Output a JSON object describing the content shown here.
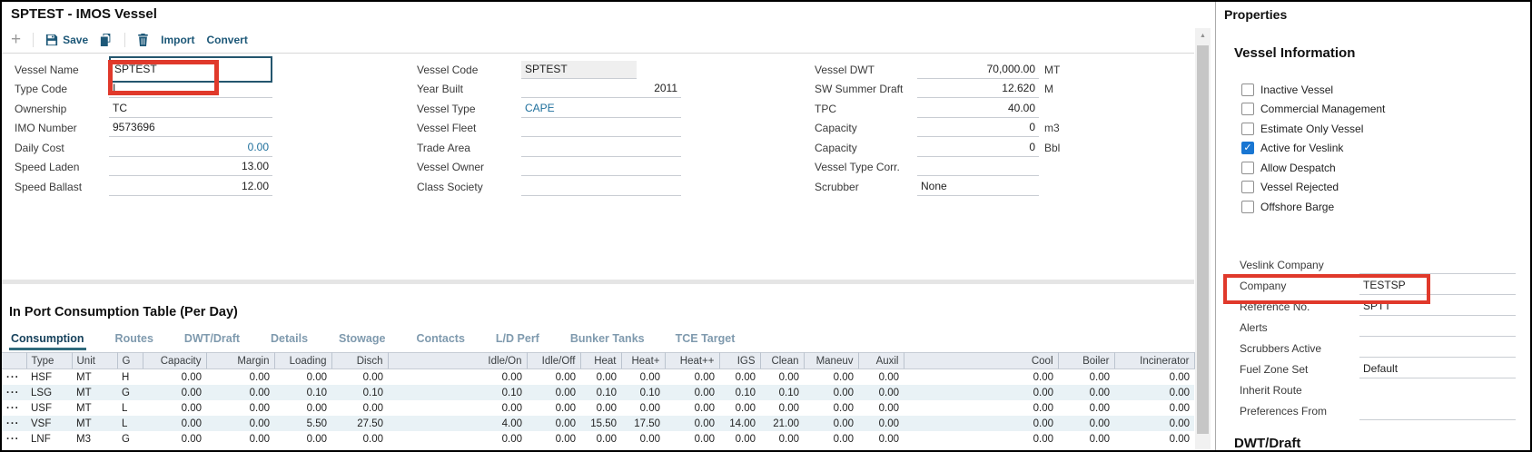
{
  "title": "SPTEST - IMOS Vessel",
  "toolbar": {
    "add": "+",
    "save": "Save",
    "import": "Import",
    "convert": "Convert",
    "icons": [
      "plus-icon",
      "floppy-disk-icon",
      "copy-icon",
      "trash-icon"
    ]
  },
  "form": {
    "columns": [
      {
        "name": "left",
        "fields": [
          {
            "label": "Vessel Name",
            "value": "SPTEST",
            "style": "boxed",
            "annotated": true
          },
          {
            "label": "Type Code",
            "value": "I"
          },
          {
            "label": "Ownership",
            "value": "TC"
          },
          {
            "label": "IMO Number",
            "value": "9573696"
          },
          {
            "label": "Daily Cost",
            "value": "0.00",
            "align": "right",
            "style": "link"
          },
          {
            "label": "Speed Laden",
            "value": "13.00",
            "align": "right"
          },
          {
            "label": "Speed Ballast",
            "value": "12.00",
            "align": "right"
          }
        ]
      },
      {
        "name": "middle",
        "fields": [
          {
            "label": "Vessel Code",
            "value": "SPTEST",
            "style": "readonly"
          },
          {
            "label": "Year Built",
            "value": "2011",
            "align": "right"
          },
          {
            "label": "Vessel Type",
            "value": "CAPE",
            "style": "link"
          },
          {
            "label": "Vessel Fleet",
            "value": ""
          },
          {
            "label": "Trade Area",
            "value": ""
          },
          {
            "label": "Vessel Owner",
            "value": ""
          },
          {
            "label": "Class Society",
            "value": ""
          }
        ]
      },
      {
        "name": "right",
        "fields": [
          {
            "label": "Vessel DWT",
            "value": "70,000.00",
            "align": "right",
            "unit": "MT"
          },
          {
            "label": "SW Summer Draft",
            "value": "12.620",
            "align": "right",
            "unit": "M"
          },
          {
            "label": "TPC",
            "value": "40.00",
            "align": "right",
            "unit": ""
          },
          {
            "label": "Capacity",
            "value": "0",
            "align": "right",
            "unit": "m3"
          },
          {
            "label": "Capacity",
            "value": "0",
            "align": "right",
            "unit": "Bbl"
          },
          {
            "label": "Vessel Type Corr.",
            "value": "",
            "unit": ""
          },
          {
            "label": "Scrubber",
            "value": "None",
            "unit": ""
          }
        ]
      }
    ]
  },
  "section_title": "In Port Consumption Table (Per Day)",
  "tabs": {
    "active": "Consumption",
    "items": [
      "Consumption",
      "Routes",
      "DWT/Draft",
      "Details",
      "Stowage",
      "Contacts",
      "L/D Perf",
      "Bunker Tanks",
      "TCE Target"
    ]
  },
  "table": {
    "row_menu": "···",
    "headers": [
      "",
      "Type",
      "Unit",
      "G",
      "Capacity",
      "Margin",
      "Loading",
      "Disch",
      "Idle/On",
      "Idle/Off",
      "Heat",
      "Heat+",
      "Heat++",
      "IGS",
      "Clean",
      "Maneuv",
      "Auxil",
      "Cool",
      "Boiler",
      "Incinerator"
    ],
    "rows": [
      {
        "type": "HSF",
        "unit": "MT",
        "g": "H",
        "values": [
          "0.00",
          "0.00",
          "0.00",
          "0.00",
          "0.00",
          "0.00",
          "0.00",
          "0.00",
          "0.00",
          "0.00",
          "0.00",
          "0.00",
          "0.00",
          "0.00",
          "0.00",
          "0.00"
        ]
      },
      {
        "type": "LSG",
        "unit": "MT",
        "g": "G",
        "values": [
          "0.00",
          "0.00",
          "0.10",
          "0.10",
          "0.10",
          "0.00",
          "0.10",
          "0.10",
          "0.00",
          "0.10",
          "0.10",
          "0.00",
          "0.00",
          "0.00",
          "0.00",
          "0.00"
        ]
      },
      {
        "type": "USF",
        "unit": "MT",
        "g": "L",
        "values": [
          "0.00",
          "0.00",
          "0.00",
          "0.00",
          "0.00",
          "0.00",
          "0.00",
          "0.00",
          "0.00",
          "0.00",
          "0.00",
          "0.00",
          "0.00",
          "0.00",
          "0.00",
          "0.00"
        ]
      },
      {
        "type": "VSF",
        "unit": "MT",
        "g": "L",
        "values": [
          "0.00",
          "0.00",
          "5.50",
          "27.50",
          "4.00",
          "0.00",
          "15.50",
          "17.50",
          "0.00",
          "14.00",
          "21.00",
          "0.00",
          "0.00",
          "0.00",
          "0.00",
          "0.00"
        ]
      },
      {
        "type": "LNF",
        "unit": "M3",
        "g": "G",
        "values": [
          "0.00",
          "0.00",
          "0.00",
          "0.00",
          "0.00",
          "0.00",
          "0.00",
          "0.00",
          "0.00",
          "0.00",
          "0.00",
          "0.00",
          "0.00",
          "0.00",
          "0.00",
          "0.00"
        ]
      }
    ]
  },
  "properties": {
    "title": "Properties",
    "vessel_info_title": "Vessel Information",
    "checkboxes": [
      {
        "label": "Inactive Vessel",
        "checked": false
      },
      {
        "label": "Commercial Management",
        "checked": false
      },
      {
        "label": "Estimate Only Vessel",
        "checked": false
      },
      {
        "label": "Active for Veslink",
        "checked": true
      },
      {
        "label": "Allow Despatch",
        "checked": false
      },
      {
        "label": "Vessel Rejected",
        "checked": false
      },
      {
        "label": "Offshore Barge",
        "checked": false
      }
    ],
    "fields": [
      {
        "label": "Veslink Company",
        "value": ""
      },
      {
        "label": "Company",
        "value": "TESTSP",
        "annotated": true
      },
      {
        "label": "Reference No.",
        "value": "SPTT"
      },
      {
        "label": "Alerts",
        "value": ""
      },
      {
        "label": "Scrubbers Active",
        "value": ""
      },
      {
        "label": "Fuel Zone Set",
        "value": "Default"
      },
      {
        "label": "Inherit Route",
        "value": "",
        "noline": true
      },
      {
        "label": "Preferences From",
        "value": ""
      }
    ],
    "bottom_heading": "DWT/Draft"
  },
  "colors": {
    "annotation_red": "#e0392b",
    "checkbox_blue": "#1976d2",
    "link_blue": "#1e6f9c",
    "toolbar_blue": "#1d5878"
  }
}
